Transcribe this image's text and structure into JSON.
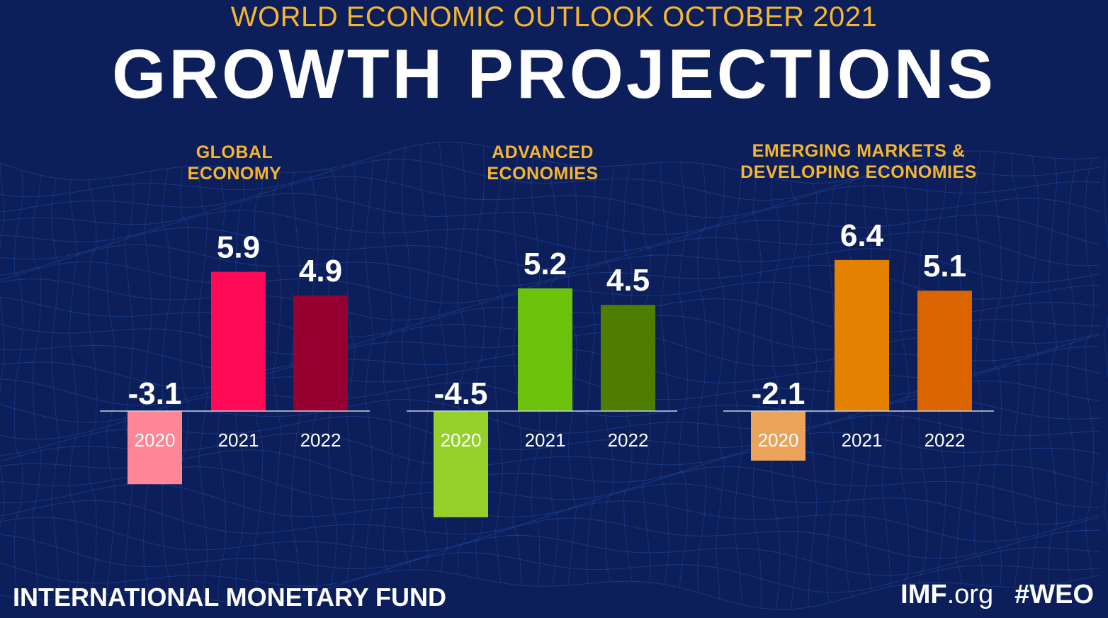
{
  "header": {
    "supertitle": "WORLD ECONOMIC OUTLOOK OCTOBER 2021",
    "title": "GROWTH PROJECTIONS"
  },
  "footer": {
    "organization": "INTERNATIONAL MONETARY FUND",
    "site_bold": "IMF",
    "site_rest": ".org",
    "hashtag": "#WEO"
  },
  "colors": {
    "background": "#0c1f5a",
    "accent": "#f5b531",
    "text": "#ffffff"
  },
  "chart_data": [
    {
      "type": "bar",
      "title_lines": [
        "GLOBAL",
        "ECONOMY"
      ],
      "categories": [
        "2020",
        "2021",
        "2022"
      ],
      "values": [
        -3.1,
        5.9,
        4.9
      ],
      "value_labels": [
        "-3.1",
        "5.9",
        "4.9"
      ],
      "colors": [
        "#ff8795",
        "#ff0a54",
        "#950030"
      ],
      "ylim": [
        -4.5,
        6.4
      ]
    },
    {
      "type": "bar",
      "title_lines": [
        "ADVANCED",
        "ECONOMIES"
      ],
      "categories": [
        "2020",
        "2021",
        "2022"
      ],
      "values": [
        -4.5,
        5.2,
        4.5
      ],
      "value_labels": [
        "-4.5",
        "5.2",
        "4.5"
      ],
      "colors": [
        "#95d02b",
        "#6cc20a",
        "#4e7d00"
      ],
      "ylim": [
        -4.5,
        6.4
      ]
    },
    {
      "type": "bar",
      "title_lines": [
        "EMERGING MARKETS &",
        "DEVELOPING ECONOMIES"
      ],
      "categories": [
        "2020",
        "2021",
        "2022"
      ],
      "values": [
        -2.1,
        6.4,
        5.1
      ],
      "value_labels": [
        "-2.1",
        "6.4",
        "5.1"
      ],
      "colors": [
        "#eba35a",
        "#e58100",
        "#d96400"
      ],
      "ylim": [
        -4.5,
        6.4
      ]
    }
  ]
}
